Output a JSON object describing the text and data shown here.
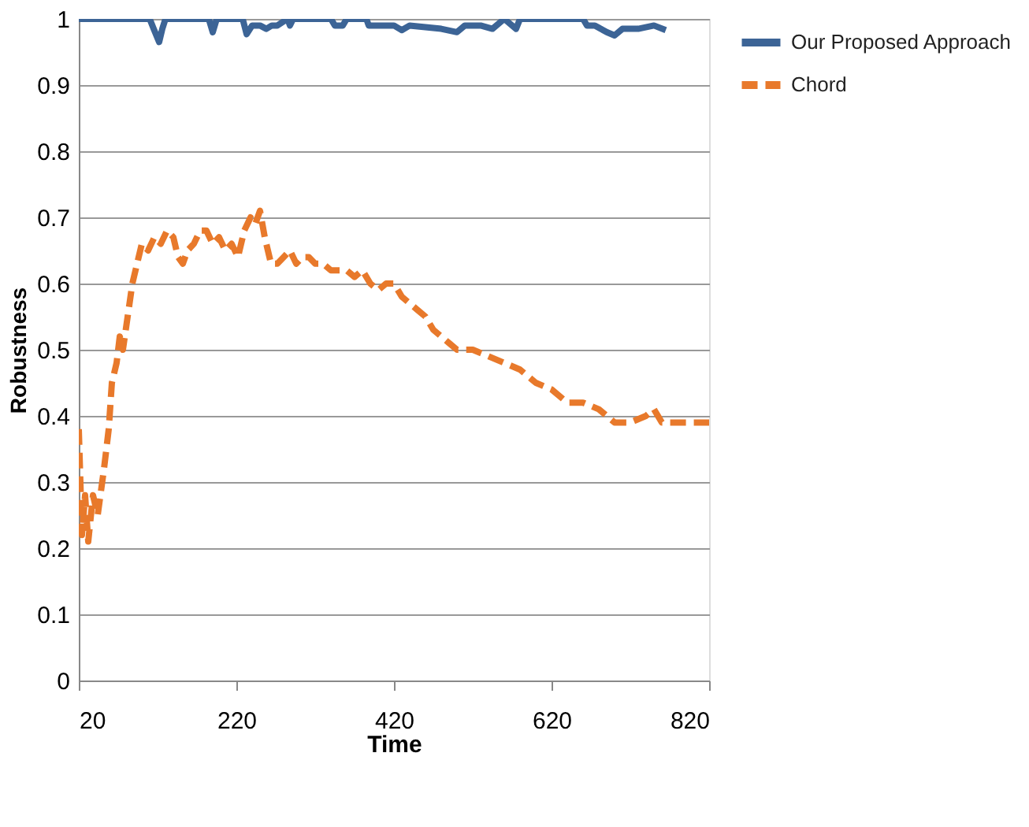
{
  "chart_data": {
    "type": "line",
    "xlabel": "Time",
    "ylabel": "Robustness",
    "xlim": [
      20,
      820
    ],
    "xticks": [
      20,
      220,
      420,
      620,
      820
    ],
    "ylim": [
      0,
      1
    ],
    "yticks": [
      0,
      0.1,
      0.2,
      0.3,
      0.4,
      0.5,
      0.6,
      0.7,
      0.8,
      0.9,
      1
    ],
    "grid": "y",
    "legend": "right",
    "series": [
      {
        "name": "Our Proposed Approach",
        "color": "#3c6496",
        "line_style": "solid",
        "x": [
          20,
          110,
          115,
          122,
          126,
          130,
          185,
          190,
          195,
          228,
          233,
          240,
          250,
          258,
          265,
          272,
          285,
          288,
          292,
          340,
          345,
          355,
          360,
          385,
          388,
          420,
          430,
          440,
          480,
          500,
          510,
          530,
          545,
          560,
          575,
          580,
          660,
          665,
          675,
          690,
          700,
          710,
          730,
          750,
          765
        ],
        "values": [
          1,
          1,
          0.985,
          0.965,
          0.985,
          1,
          1,
          0.98,
          1,
          1,
          0.977,
          0.99,
          0.99,
          0.985,
          0.99,
          0.99,
          1,
          0.99,
          1,
          1,
          0.99,
          0.99,
          1,
          1,
          0.99,
          0.99,
          0.983,
          0.99,
          0.985,
          0.98,
          0.99,
          0.99,
          0.985,
          1,
          0.985,
          1,
          1,
          0.99,
          0.99,
          0.98,
          0.975,
          0.985,
          0.985,
          0.99,
          0.983
        ]
      },
      {
        "name": "Chord",
        "color": "#e8792b",
        "line_style": "dashed",
        "x": [
          20,
          24,
          28,
          32,
          38,
          44,
          52,
          58,
          62,
          68,
          72,
          76,
          82,
          88,
          94,
          100,
          108,
          116,
          124,
          132,
          140,
          146,
          152,
          158,
          166,
          174,
          182,
          190,
          198,
          206,
          214,
          222,
          230,
          238,
          244,
          250,
          256,
          264,
          272,
          280,
          288,
          296,
          304,
          312,
          320,
          330,
          340,
          350,
          360,
          370,
          380,
          390,
          400,
          410,
          420,
          430,
          440,
          450,
          460,
          470,
          480,
          490,
          500,
          520,
          540,
          560,
          580,
          600,
          620,
          640,
          660,
          680,
          700,
          720,
          740,
          750,
          760,
          780,
          800,
          820
        ],
        "values": [
          0.38,
          0.22,
          0.28,
          0.21,
          0.28,
          0.25,
          0.32,
          0.38,
          0.45,
          0.48,
          0.52,
          0.5,
          0.55,
          0.6,
          0.63,
          0.66,
          0.65,
          0.67,
          0.66,
          0.68,
          0.67,
          0.64,
          0.63,
          0.65,
          0.66,
          0.68,
          0.68,
          0.66,
          0.67,
          0.65,
          0.66,
          0.64,
          0.68,
          0.7,
          0.69,
          0.71,
          0.67,
          0.63,
          0.63,
          0.64,
          0.65,
          0.63,
          0.64,
          0.64,
          0.63,
          0.63,
          0.62,
          0.62,
          0.62,
          0.61,
          0.62,
          0.6,
          0.59,
          0.6,
          0.6,
          0.58,
          0.57,
          0.56,
          0.55,
          0.53,
          0.52,
          0.51,
          0.5,
          0.5,
          0.49,
          0.48,
          0.47,
          0.45,
          0.44,
          0.42,
          0.42,
          0.41,
          0.39,
          0.39,
          0.4,
          0.41,
          0.39,
          0.39,
          0.39,
          0.39
        ]
      }
    ]
  }
}
